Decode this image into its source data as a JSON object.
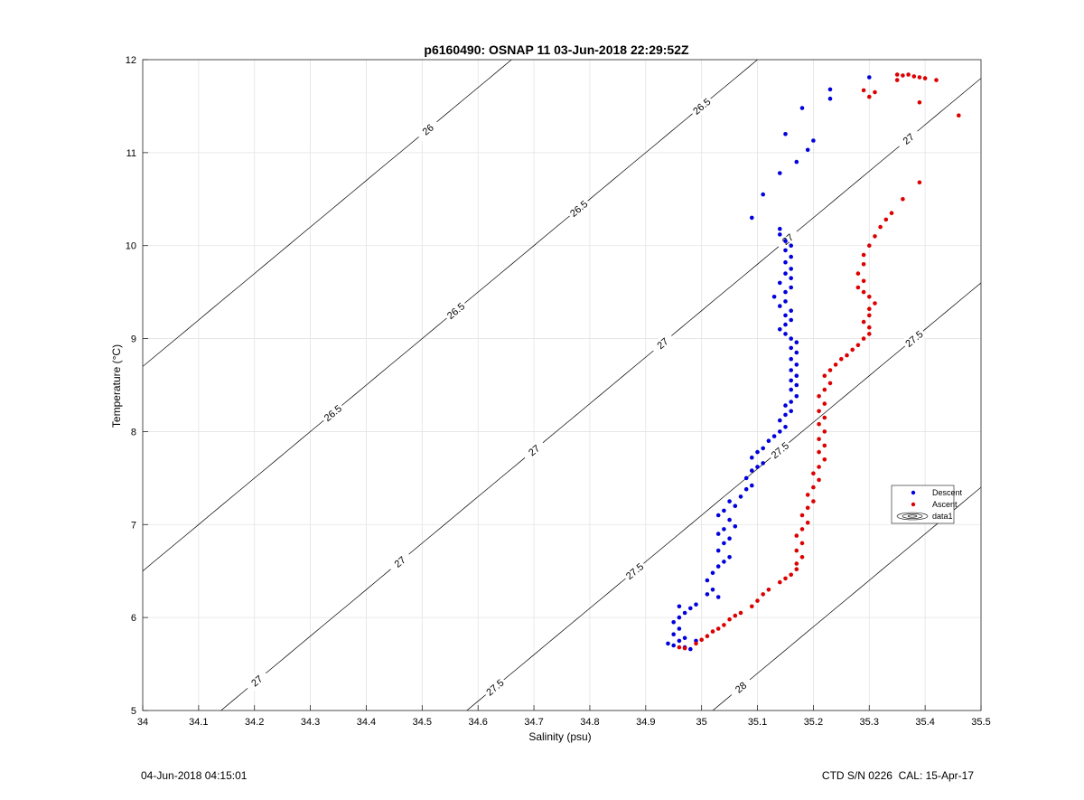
{
  "chart_data": {
    "type": "scatter",
    "title": "p6160490: OSNAP 11 03-Jun-2018 22:29:52Z",
    "xlabel": "Salinity (psu)",
    "ylabel": "Temperature (°C)",
    "xlim": [
      34,
      35.5
    ],
    "ylim": [
      5,
      12
    ],
    "xticks": [
      "34",
      "34.1",
      "34.2",
      "34.3",
      "34.4",
      "34.5",
      "34.6",
      "34.7",
      "34.8",
      "34.9",
      "35",
      "35.1",
      "35.2",
      "35.3",
      "35.4",
      "35.5"
    ],
    "yticks": [
      "5",
      "6",
      "7",
      "8",
      "9",
      "10",
      "11",
      "12"
    ],
    "grid": true,
    "legend_position": "right",
    "legend": [
      "Descent",
      "Ascent",
      "data1"
    ],
    "contour_labels": [
      "26",
      "26.5",
      "27",
      "27.5",
      "28"
    ],
    "series": [
      {
        "name": "Descent",
        "color": "#0000dd",
        "points": [
          [
            34.95,
            5.7
          ],
          [
            34.96,
            5.75
          ],
          [
            34.94,
            5.72
          ],
          [
            34.97,
            5.68
          ],
          [
            34.98,
            5.66
          ],
          [
            34.95,
            5.82
          ],
          [
            34.96,
            5.88
          ],
          [
            34.97,
            5.78
          ],
          [
            34.99,
            5.75
          ],
          [
            34.95,
            5.95
          ],
          [
            34.96,
            6.0
          ],
          [
            34.97,
            6.05
          ],
          [
            34.98,
            6.1
          ],
          [
            34.96,
            6.12
          ],
          [
            34.99,
            6.14
          ],
          [
            35.01,
            6.25
          ],
          [
            35.02,
            6.3
          ],
          [
            35.03,
            6.22
          ],
          [
            35.01,
            6.4
          ],
          [
            35.02,
            6.48
          ],
          [
            35.03,
            6.55
          ],
          [
            35.04,
            6.6
          ],
          [
            35.05,
            6.65
          ],
          [
            35.03,
            6.72
          ],
          [
            35.04,
            6.8
          ],
          [
            35.05,
            6.85
          ],
          [
            35.03,
            6.9
          ],
          [
            35.04,
            6.95
          ],
          [
            35.06,
            6.98
          ],
          [
            35.05,
            7.05
          ],
          [
            35.03,
            7.1
          ],
          [
            35.04,
            7.15
          ],
          [
            35.06,
            7.2
          ],
          [
            35.05,
            7.25
          ],
          [
            35.07,
            7.3
          ],
          [
            35.08,
            7.38
          ],
          [
            35.09,
            7.42
          ],
          [
            35.08,
            7.5
          ],
          [
            35.09,
            7.58
          ],
          [
            35.1,
            7.62
          ],
          [
            35.11,
            7.66
          ],
          [
            35.09,
            7.72
          ],
          [
            35.1,
            7.78
          ],
          [
            35.11,
            7.82
          ],
          [
            35.12,
            7.9
          ],
          [
            35.13,
            7.95
          ],
          [
            35.14,
            8.0
          ],
          [
            35.15,
            8.05
          ],
          [
            35.14,
            8.12
          ],
          [
            35.15,
            8.18
          ],
          [
            35.16,
            8.22
          ],
          [
            35.15,
            8.28
          ],
          [
            35.16,
            8.32
          ],
          [
            35.17,
            8.38
          ],
          [
            35.16,
            8.45
          ],
          [
            35.17,
            8.5
          ],
          [
            35.16,
            8.55
          ],
          [
            35.17,
            8.6
          ],
          [
            35.16,
            8.66
          ],
          [
            35.17,
            8.72
          ],
          [
            35.16,
            8.78
          ],
          [
            35.17,
            8.85
          ],
          [
            35.16,
            8.9
          ],
          [
            35.17,
            8.96
          ],
          [
            35.16,
            9.0
          ],
          [
            35.15,
            9.05
          ],
          [
            35.14,
            9.1
          ],
          [
            35.15,
            9.15
          ],
          [
            35.16,
            9.2
          ],
          [
            35.15,
            9.25
          ],
          [
            35.16,
            9.3
          ],
          [
            35.14,
            9.35
          ],
          [
            35.15,
            9.4
          ],
          [
            35.13,
            9.45
          ],
          [
            35.15,
            9.5
          ],
          [
            35.16,
            9.55
          ],
          [
            35.14,
            9.6
          ],
          [
            35.16,
            9.65
          ],
          [
            35.15,
            9.7
          ],
          [
            35.16,
            9.75
          ],
          [
            35.15,
            9.82
          ],
          [
            35.16,
            9.88
          ],
          [
            35.15,
            9.95
          ],
          [
            35.16,
            10.0
          ],
          [
            35.15,
            10.05
          ],
          [
            35.14,
            10.12
          ],
          [
            35.14,
            10.18
          ],
          [
            35.09,
            10.3
          ],
          [
            35.11,
            10.55
          ],
          [
            35.14,
            10.78
          ],
          [
            35.17,
            10.9
          ],
          [
            35.19,
            11.03
          ],
          [
            35.2,
            11.13
          ],
          [
            35.15,
            11.2
          ],
          [
            35.18,
            11.48
          ],
          [
            35.23,
            11.58
          ],
          [
            35.23,
            11.68
          ],
          [
            35.3,
            11.81
          ]
        ]
      },
      {
        "name": "Ascent",
        "color": "#dd0000",
        "points": [
          [
            34.96,
            5.68
          ],
          [
            34.97,
            5.67
          ],
          [
            34.99,
            5.72
          ],
          [
            35.0,
            5.76
          ],
          [
            35.01,
            5.8
          ],
          [
            35.02,
            5.85
          ],
          [
            35.03,
            5.88
          ],
          [
            35.04,
            5.92
          ],
          [
            35.05,
            5.98
          ],
          [
            35.06,
            6.02
          ],
          [
            35.07,
            6.05
          ],
          [
            35.09,
            6.12
          ],
          [
            35.1,
            6.18
          ],
          [
            35.11,
            6.25
          ],
          [
            35.12,
            6.3
          ],
          [
            35.14,
            6.38
          ],
          [
            35.15,
            6.42
          ],
          [
            35.16,
            6.46
          ],
          [
            35.17,
            6.52
          ],
          [
            35.17,
            6.58
          ],
          [
            35.18,
            6.65
          ],
          [
            35.17,
            6.72
          ],
          [
            35.18,
            6.8
          ],
          [
            35.17,
            6.88
          ],
          [
            35.18,
            6.95
          ],
          [
            35.19,
            7.02
          ],
          [
            35.18,
            7.1
          ],
          [
            35.19,
            7.18
          ],
          [
            35.2,
            7.25
          ],
          [
            35.19,
            7.32
          ],
          [
            35.2,
            7.4
          ],
          [
            35.21,
            7.48
          ],
          [
            35.2,
            7.55
          ],
          [
            35.21,
            7.62
          ],
          [
            35.22,
            7.7
          ],
          [
            35.21,
            7.78
          ],
          [
            35.22,
            7.85
          ],
          [
            35.21,
            7.92
          ],
          [
            35.22,
            8.0
          ],
          [
            35.21,
            8.08
          ],
          [
            35.22,
            8.15
          ],
          [
            35.21,
            8.22
          ],
          [
            35.22,
            8.3
          ],
          [
            35.21,
            8.38
          ],
          [
            35.22,
            8.45
          ],
          [
            35.23,
            8.52
          ],
          [
            35.22,
            8.6
          ],
          [
            35.23,
            8.66
          ],
          [
            35.24,
            8.72
          ],
          [
            35.25,
            8.78
          ],
          [
            35.26,
            8.82
          ],
          [
            35.27,
            8.88
          ],
          [
            35.28,
            8.93
          ],
          [
            35.29,
            9.0
          ],
          [
            35.3,
            9.05
          ],
          [
            35.3,
            9.12
          ],
          [
            35.29,
            9.18
          ],
          [
            35.3,
            9.25
          ],
          [
            35.3,
            9.32
          ],
          [
            35.31,
            9.38
          ],
          [
            35.3,
            9.45
          ],
          [
            35.29,
            9.5
          ],
          [
            35.28,
            9.55
          ],
          [
            35.29,
            9.62
          ],
          [
            35.28,
            9.7
          ],
          [
            35.29,
            9.8
          ],
          [
            35.29,
            9.9
          ],
          [
            35.3,
            10.0
          ],
          [
            35.31,
            10.1
          ],
          [
            35.32,
            10.2
          ],
          [
            35.33,
            10.28
          ],
          [
            35.34,
            10.35
          ],
          [
            35.36,
            10.5
          ],
          [
            35.39,
            10.68
          ],
          [
            35.3,
            11.6
          ],
          [
            35.31,
            11.65
          ],
          [
            35.29,
            11.67
          ],
          [
            35.35,
            11.78
          ],
          [
            35.36,
            11.83
          ],
          [
            35.37,
            11.84
          ],
          [
            35.38,
            11.82
          ],
          [
            35.39,
            11.81
          ],
          [
            35.4,
            11.8
          ],
          [
            35.42,
            11.78
          ],
          [
            35.39,
            11.54
          ],
          [
            35.46,
            11.4
          ],
          [
            35.35,
            11.84
          ]
        ]
      }
    ]
  },
  "footer": {
    "left": "04-Jun-2018 04:15:01",
    "right": "CTD S/N 0226  CAL: 15-Apr-17"
  }
}
